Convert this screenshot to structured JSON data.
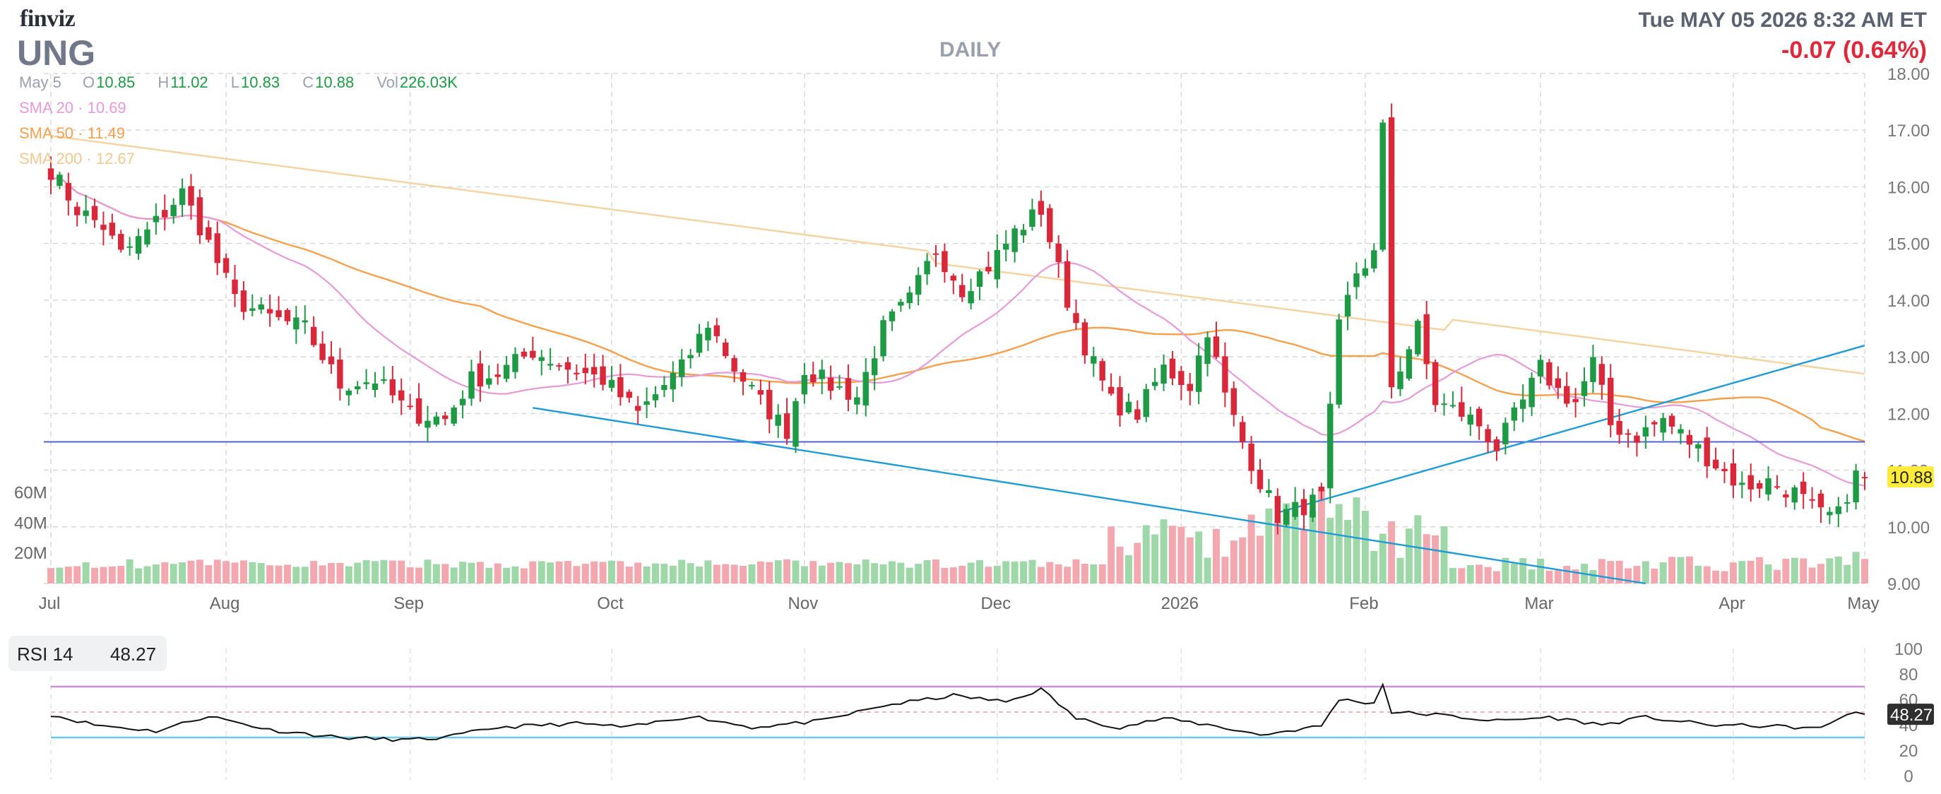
{
  "header": {
    "logo": "finviz",
    "ticker": "UNG",
    "interval": "DAILY",
    "datetime": "Tue MAY 05 2026 8:32 AM ET",
    "change": "-0.07 (0.64%)"
  },
  "ohlc": {
    "date": "May 5",
    "open_label": "O",
    "open": "10.85",
    "high_label": "H",
    "high": "11.02",
    "low_label": "L",
    "low": "10.83",
    "close_label": "C",
    "close": "10.88",
    "vol_label": "Vol",
    "vol": "226.03K"
  },
  "indicators": {
    "sma20": {
      "label": "SMA 20",
      "value": "10.69",
      "color": "#e69ad8"
    },
    "sma50": {
      "label": "SMA 50",
      "value": "11.49",
      "color": "#f5a04d"
    },
    "sma200": {
      "label": "SMA 200",
      "value": "12.67",
      "color": "#f5d3a0"
    }
  },
  "rsi": {
    "label": "RSI 14",
    "value": "48.27"
  },
  "colors": {
    "up": "#1e9944",
    "down": "#d8283a",
    "vol_up": "#9ed8a8",
    "vol_down": "#f2a8ae",
    "trend": "#1f9bd6",
    "hline": "#5460d6"
  },
  "chart_data": [
    {
      "type": "candlestick",
      "x_labels": [
        "Jul",
        "Aug",
        "Sep",
        "Oct",
        "Nov",
        "Dec",
        "2026",
        "Feb",
        "Mar",
        "Apr",
        "May"
      ],
      "y_ticks": [
        "9.00",
        "10.00",
        "11.00",
        "12.00",
        "13.00",
        "14.00",
        "15.00",
        "16.00",
        "17.00",
        "18.00"
      ],
      "ylim": [
        9,
        18
      ],
      "last_price": "10.88",
      "horizontal_line": 11.5,
      "close_anchors": [
        [
          0,
          16.3
        ],
        [
          3,
          15.6
        ],
        [
          6,
          15.3
        ],
        [
          8,
          14.8
        ],
        [
          11,
          15.2
        ],
        [
          15,
          15.9
        ],
        [
          18,
          15.0
        ],
        [
          21,
          14.0
        ],
        [
          25,
          13.7
        ],
        [
          29,
          13.5
        ],
        [
          33,
          12.5
        ],
        [
          37,
          12.6
        ],
        [
          41,
          12.0
        ],
        [
          45,
          11.9
        ],
        [
          48,
          12.6
        ],
        [
          51,
          12.7
        ],
        [
          55,
          13.1
        ],
        [
          59,
          12.8
        ],
        [
          63,
          12.6
        ],
        [
          67,
          12.0
        ],
        [
          70,
          12.5
        ],
        [
          72,
          12.8
        ],
        [
          75,
          13.6
        ],
        [
          78,
          12.8
        ],
        [
          81,
          12.2
        ],
        [
          84,
          11.7
        ],
        [
          86,
          12.8
        ],
        [
          89,
          12.5
        ],
        [
          92,
          12.3
        ],
        [
          95,
          13.5
        ],
        [
          98,
          14.0
        ],
        [
          101,
          14.9
        ],
        [
          104,
          14.2
        ],
        [
          107,
          14.6
        ],
        [
          110,
          15.2
        ],
        [
          113,
          15.6
        ],
        [
          116,
          14.0
        ],
        [
          118,
          13.2
        ],
        [
          121,
          12.2
        ],
        [
          124,
          12.0
        ],
        [
          127,
          12.8
        ],
        [
          130,
          12.5
        ],
        [
          132,
          13.5
        ],
        [
          134,
          12.3
        ],
        [
          136,
          11.5
        ],
        [
          138,
          10.8
        ],
        [
          140,
          10.2
        ],
        [
          142,
          10.3
        ],
        [
          145,
          10.5
        ],
        [
          147,
          13.5
        ],
        [
          149,
          14.5
        ],
        [
          151,
          14.8
        ],
        [
          152,
          17.0
        ],
        [
          153,
          12.5
        ],
        [
          156,
          13.5
        ],
        [
          158,
          12.2
        ],
        [
          161,
          12.0
        ],
        [
          163,
          11.8
        ],
        [
          165,
          11.4
        ],
        [
          168,
          12.2
        ],
        [
          170,
          12.8
        ],
        [
          172,
          12.4
        ],
        [
          174,
          12.2
        ],
        [
          176,
          12.9
        ],
        [
          178,
          11.8
        ],
        [
          181,
          11.6
        ],
        [
          184,
          11.9
        ],
        [
          187,
          11.5
        ],
        [
          190,
          11.1
        ],
        [
          193,
          10.7
        ],
        [
          196,
          10.8
        ],
        [
          199,
          10.6
        ],
        [
          202,
          10.2
        ],
        [
          204,
          10.2
        ],
        [
          205,
          10.6
        ],
        [
          206,
          10.9
        ],
        [
          207,
          10.88
        ]
      ],
      "volume_ticks": [
        "20M",
        "40M",
        "60M"
      ],
      "volume_ylim": [
        0,
        70
      ]
    },
    {
      "type": "line",
      "name": "RSI 14",
      "y_ticks": [
        "0",
        "20",
        "40",
        "60",
        "80",
        "100"
      ],
      "ylim": [
        0,
        100
      ],
      "levels": [
        30,
        50,
        70
      ],
      "rsi_anchors": [
        [
          0,
          48
        ],
        [
          5,
          40
        ],
        [
          12,
          35
        ],
        [
          18,
          47
        ],
        [
          25,
          36
        ],
        [
          33,
          30
        ],
        [
          41,
          28
        ],
        [
          45,
          30
        ],
        [
          51,
          38
        ],
        [
          60,
          41
        ],
        [
          66,
          38
        ],
        [
          73,
          47
        ],
        [
          80,
          38
        ],
        [
          88,
          43
        ],
        [
          95,
          55
        ],
        [
          103,
          63
        ],
        [
          109,
          58
        ],
        [
          113,
          68
        ],
        [
          117,
          45
        ],
        [
          122,
          38
        ],
        [
          127,
          45
        ],
        [
          133,
          39
        ],
        [
          138,
          32
        ],
        [
          141,
          35
        ],
        [
          145,
          39
        ],
        [
          147,
          60
        ],
        [
          151,
          57
        ],
        [
          152,
          72
        ],
        [
          153,
          50
        ],
        [
          158,
          48
        ],
        [
          165,
          43
        ],
        [
          171,
          46
        ],
        [
          177,
          40
        ],
        [
          182,
          46
        ],
        [
          189,
          40
        ],
        [
          196,
          39
        ],
        [
          202,
          37
        ],
        [
          205,
          49
        ],
        [
          207,
          48.27
        ]
      ]
    }
  ]
}
